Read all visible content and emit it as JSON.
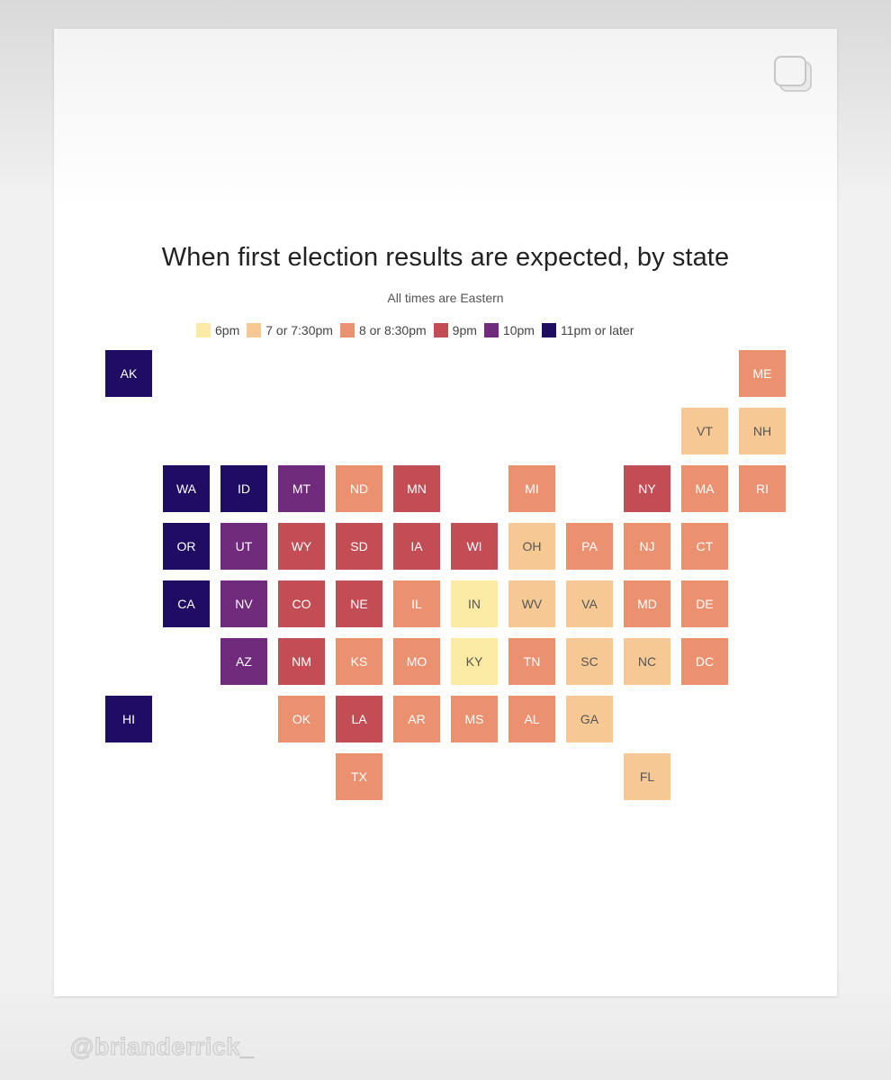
{
  "colors": {
    "c6": "#fbeaa3",
    "c7": "#f6c994",
    "c8": "#ec9170",
    "c9": "#c34d55",
    "c10": "#702b7c",
    "c11": "#200c63"
  },
  "chart_data": {
    "type": "tile-map",
    "title": "When first election results are expected, by state",
    "subtitle": "All times are Eastern",
    "legend": [
      {
        "key": "c6",
        "label": "6pm"
      },
      {
        "key": "c7",
        "label": "7 or 7:30pm"
      },
      {
        "key": "c8",
        "label": "8 or 8:30pm"
      },
      {
        "key": "c9",
        "label": "9pm"
      },
      {
        "key": "c10",
        "label": "10pm"
      },
      {
        "key": "c11",
        "label": "11pm or later"
      }
    ],
    "states": [
      {
        "abbr": "AK",
        "row": 0,
        "col": 0,
        "time": "c11"
      },
      {
        "abbr": "ME",
        "row": 0,
        "col": 11,
        "time": "c8"
      },
      {
        "abbr": "VT",
        "row": 1,
        "col": 10,
        "time": "c7"
      },
      {
        "abbr": "NH",
        "row": 1,
        "col": 11,
        "time": "c7"
      },
      {
        "abbr": "WA",
        "row": 2,
        "col": 1,
        "time": "c11"
      },
      {
        "abbr": "ID",
        "row": 2,
        "col": 2,
        "time": "c11"
      },
      {
        "abbr": "MT",
        "row": 2,
        "col": 3,
        "time": "c10"
      },
      {
        "abbr": "ND",
        "row": 2,
        "col": 4,
        "time": "c8"
      },
      {
        "abbr": "MN",
        "row": 2,
        "col": 5,
        "time": "c9"
      },
      {
        "abbr": "MI",
        "row": 2,
        "col": 7,
        "time": "c8"
      },
      {
        "abbr": "NY",
        "row": 2,
        "col": 9,
        "time": "c9"
      },
      {
        "abbr": "MA",
        "row": 2,
        "col": 10,
        "time": "c8"
      },
      {
        "abbr": "RI",
        "row": 2,
        "col": 11,
        "time": "c8"
      },
      {
        "abbr": "OR",
        "row": 3,
        "col": 1,
        "time": "c11"
      },
      {
        "abbr": "UT",
        "row": 3,
        "col": 2,
        "time": "c10"
      },
      {
        "abbr": "WY",
        "row": 3,
        "col": 3,
        "time": "c9"
      },
      {
        "abbr": "SD",
        "row": 3,
        "col": 4,
        "time": "c9"
      },
      {
        "abbr": "IA",
        "row": 3,
        "col": 5,
        "time": "c9"
      },
      {
        "abbr": "WI",
        "row": 3,
        "col": 6,
        "time": "c9"
      },
      {
        "abbr": "OH",
        "row": 3,
        "col": 7,
        "time": "c7"
      },
      {
        "abbr": "PA",
        "row": 3,
        "col": 8,
        "time": "c8"
      },
      {
        "abbr": "NJ",
        "row": 3,
        "col": 9,
        "time": "c8"
      },
      {
        "abbr": "CT",
        "row": 3,
        "col": 10,
        "time": "c8"
      },
      {
        "abbr": "CA",
        "row": 4,
        "col": 1,
        "time": "c11"
      },
      {
        "abbr": "NV",
        "row": 4,
        "col": 2,
        "time": "c10"
      },
      {
        "abbr": "CO",
        "row": 4,
        "col": 3,
        "time": "c9"
      },
      {
        "abbr": "NE",
        "row": 4,
        "col": 4,
        "time": "c9"
      },
      {
        "abbr": "IL",
        "row": 4,
        "col": 5,
        "time": "c8"
      },
      {
        "abbr": "IN",
        "row": 4,
        "col": 6,
        "time": "c6"
      },
      {
        "abbr": "WV",
        "row": 4,
        "col": 7,
        "time": "c7"
      },
      {
        "abbr": "VA",
        "row": 4,
        "col": 8,
        "time": "c7"
      },
      {
        "abbr": "MD",
        "row": 4,
        "col": 9,
        "time": "c8"
      },
      {
        "abbr": "DE",
        "row": 4,
        "col": 10,
        "time": "c8"
      },
      {
        "abbr": "AZ",
        "row": 5,
        "col": 2,
        "time": "c10"
      },
      {
        "abbr": "NM",
        "row": 5,
        "col": 3,
        "time": "c9"
      },
      {
        "abbr": "KS",
        "row": 5,
        "col": 4,
        "time": "c8"
      },
      {
        "abbr": "MO",
        "row": 5,
        "col": 5,
        "time": "c8"
      },
      {
        "abbr": "KY",
        "row": 5,
        "col": 6,
        "time": "c6"
      },
      {
        "abbr": "TN",
        "row": 5,
        "col": 7,
        "time": "c8"
      },
      {
        "abbr": "SC",
        "row": 5,
        "col": 8,
        "time": "c7"
      },
      {
        "abbr": "NC",
        "row": 5,
        "col": 9,
        "time": "c7"
      },
      {
        "abbr": "DC",
        "row": 5,
        "col": 10,
        "time": "c8"
      },
      {
        "abbr": "HI",
        "row": 6,
        "col": 0,
        "time": "c11"
      },
      {
        "abbr": "OK",
        "row": 6,
        "col": 3,
        "time": "c8"
      },
      {
        "abbr": "LA",
        "row": 6,
        "col": 4,
        "time": "c9"
      },
      {
        "abbr": "AR",
        "row": 6,
        "col": 5,
        "time": "c8"
      },
      {
        "abbr": "MS",
        "row": 6,
        "col": 6,
        "time": "c8"
      },
      {
        "abbr": "AL",
        "row": 6,
        "col": 7,
        "time": "c8"
      },
      {
        "abbr": "GA",
        "row": 6,
        "col": 8,
        "time": "c7"
      },
      {
        "abbr": "TX",
        "row": 7,
        "col": 4,
        "time": "c8"
      },
      {
        "abbr": "FL",
        "row": 7,
        "col": 9,
        "time": "c7"
      }
    ]
  },
  "watermark": "@brianderrick_",
  "icons": {
    "corner": "copy-icon"
  }
}
